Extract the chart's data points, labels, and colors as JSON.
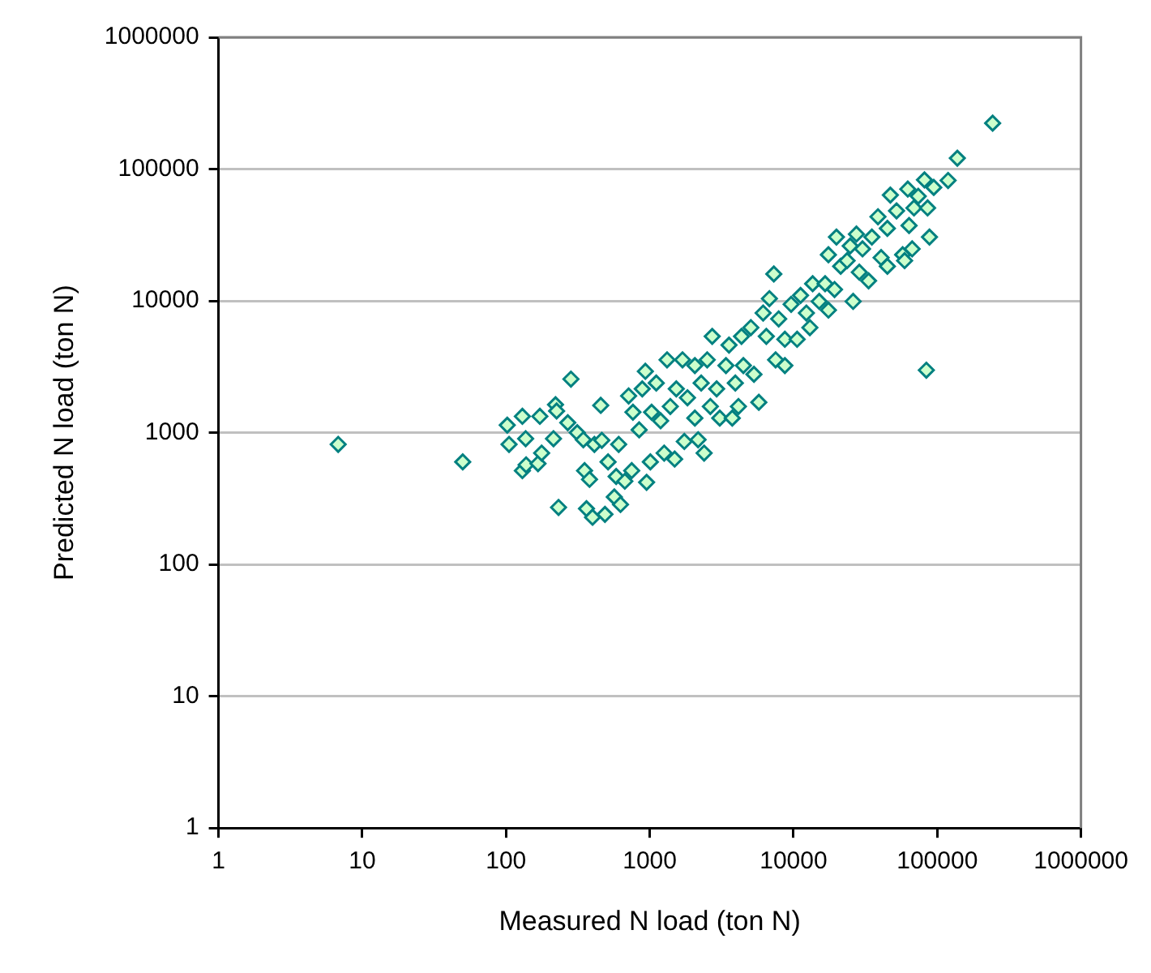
{
  "chart_data": {
    "type": "scatter",
    "xlabel": "Measured N load (ton N)",
    "ylabel": "Predicted N load (ton N)",
    "log": "xy",
    "grid": "y",
    "marker": "diamond",
    "xlim": [
      1,
      1000000
    ],
    "ylim": [
      1,
      1000000
    ],
    "xticks": [
      1,
      10,
      100,
      1000,
      10000,
      100000,
      1000000
    ],
    "yticks": [
      1,
      10,
      100,
      1000,
      10000,
      100000,
      1000000
    ],
    "series": [
      {
        "color": "#008080",
        "x": [
          6.8,
          50,
          243000,
          138000,
          119000,
          84000,
          7300,
          283,
          232,
          456,
          102,
          130,
          105,
          137,
          130,
          138,
          172,
          167,
          177,
          214,
          221,
          225,
          269,
          313,
          345,
          352,
          381,
          363,
          400,
          488,
          513,
          412,
          464,
          567,
          626,
          584,
          608,
          671,
          713,
          764,
          749,
          844,
          887,
          932,
          951,
          1010,
          1030,
          1110,
          1190,
          1260,
          1320,
          1390,
          1490,
          1530,
          1690,
          1740,
          1830,
          2060,
          2060,
          2170,
          2280,
          2390,
          2510,
          2640,
          2720,
          2920,
          3070,
          3390,
          3560,
          3750,
          3940,
          4140,
          4350,
          4480,
          5050,
          5310,
          5740,
          6150,
          6470,
          6800,
          7510,
          7890,
          8710,
          8710,
          9630,
          10600,
          11200,
          12300,
          13000,
          13600,
          15100,
          16600,
          17500,
          17500,
          19300,
          19900,
          21300,
          23600,
          24800,
          26000,
          27400,
          28700,
          30200,
          33300,
          35100,
          38700,
          40700,
          45000,
          45000,
          47200,
          52100,
          57500,
          59300,
          62400,
          63700,
          66900,
          68900,
          73800,
          81500,
          85700,
          88300,
          94600
        ],
        "values": [
          815,
          600,
          223000,
          121000,
          82000,
          2980,
          16000,
          2550,
          271,
          1610,
          1140,
          1330,
          815,
          900,
          515,
          570,
          1330,
          582,
          700,
          900,
          1630,
          1460,
          1190,
          1000,
          884,
          515,
          442,
          265,
          228,
          240,
          600,
          815,
          875,
          325,
          285,
          465,
          815,
          428,
          1900,
          1430,
          515,
          1050,
          2150,
          2920,
          420,
          600,
          1430,
          2380,
          1230,
          700,
          3570,
          1580,
          630,
          2150,
          3570,
          857,
          1840,
          3230,
          1290,
          884,
          2380,
          700,
          3570,
          1580,
          5380,
          2150,
          1290,
          3230,
          4620,
          1290,
          2380,
          1580,
          5380,
          3230,
          6270,
          2770,
          1700,
          8090,
          5380,
          10400,
          3570,
          7300,
          3230,
          5110,
          9420,
          5110,
          11000,
          8090,
          6270,
          13500,
          9910,
          13500,
          22400,
          8510,
          12200,
          30500,
          18300,
          20200,
          26100,
          9910,
          32100,
          16500,
          24800,
          14200,
          30500,
          43500,
          21300,
          35500,
          18300,
          63500,
          48200,
          22400,
          20200,
          70500,
          37300,
          24800,
          50700,
          62200,
          82800,
          50700,
          30500,
          72600
        ]
      }
    ]
  }
}
